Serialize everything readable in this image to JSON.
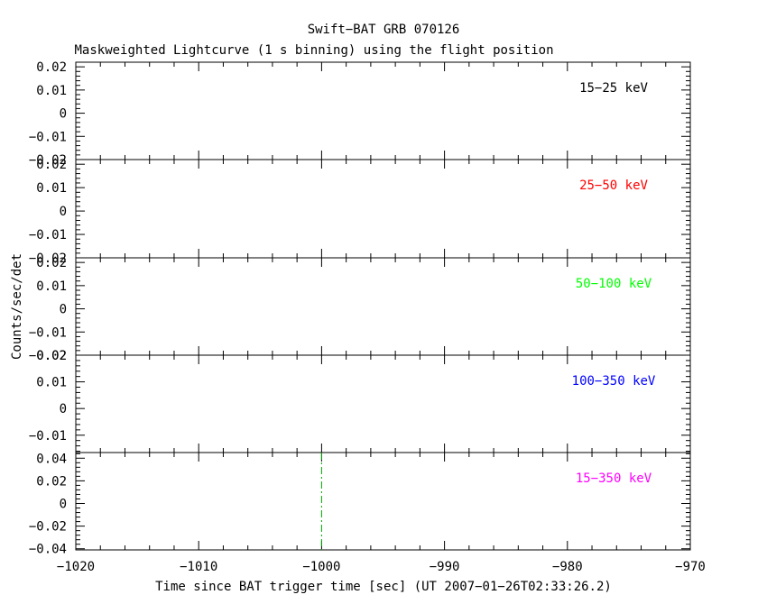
{
  "chart_data": {
    "type": "line",
    "title": "Swift−BAT GRB 070126",
    "subtitle": "Maskweighted Lightcurve (1 s binning) using the flight position",
    "xlabel": "Time since BAT trigger time [sec] (UT 2007−01−26T02:33:26.2)",
    "ylabel": "Counts/sec/det",
    "xlim": [
      -1020,
      -970
    ],
    "x_ticks": [
      -1020,
      -1010,
      -1000,
      -990,
      -980,
      -970
    ],
    "x_tick_labels": [
      "−1020",
      "−1010",
      "−1000",
      "−990",
      "−980",
      "−970"
    ],
    "trigger_marker": {
      "x": -1000,
      "color": "#00aa00",
      "style": "dash-dot"
    },
    "grid": false,
    "panels": [
      {
        "band": "15−25 keV",
        "color": "#000000",
        "ylim": [
          -0.02,
          0.022
        ],
        "y_ticks": [
          -0.02,
          -0.01,
          0,
          0.01,
          0.02
        ],
        "y_tick_labels": [
          "−0.02",
          "−0.01",
          "0",
          "0.01",
          "0.02"
        ],
        "show_marker": false
      },
      {
        "band": "25−50 keV",
        "color": "#ff0000",
        "ylim": [
          -0.02,
          0.022
        ],
        "y_ticks": [
          -0.02,
          -0.01,
          0,
          0.01,
          0.02
        ],
        "y_tick_labels": [
          "−0.02",
          "−0.01",
          "0",
          "0.01",
          "0.02"
        ],
        "show_marker": false
      },
      {
        "band": "50−100 keV",
        "color": "#00ff00",
        "ylim": [
          -0.02,
          0.022
        ],
        "y_ticks": [
          -0.02,
          -0.01,
          0,
          0.01,
          0.02
        ],
        "y_tick_labels": [
          "−0.02",
          "−0.01",
          "0",
          "0.01",
          "0.02"
        ],
        "show_marker": false
      },
      {
        "band": "100−350 keV",
        "color": "#0000ff",
        "ylim": [
          -0.0165,
          0.02
        ],
        "y_ticks": [
          -0.01,
          0,
          0.01,
          0.02
        ],
        "y_tick_labels": [
          "−0.01",
          "0",
          "0.01",
          "0.02"
        ],
        "show_marker": false
      },
      {
        "band": "15−350 keV",
        "color": "#ff00ff",
        "ylim": [
          -0.041,
          0.045
        ],
        "y_ticks": [
          -0.04,
          -0.02,
          0,
          0.02,
          0.04
        ],
        "y_tick_labels": [
          "−0.04",
          "−0.02",
          "0",
          "0.02",
          "0.04"
        ],
        "show_marker": true
      }
    ]
  }
}
